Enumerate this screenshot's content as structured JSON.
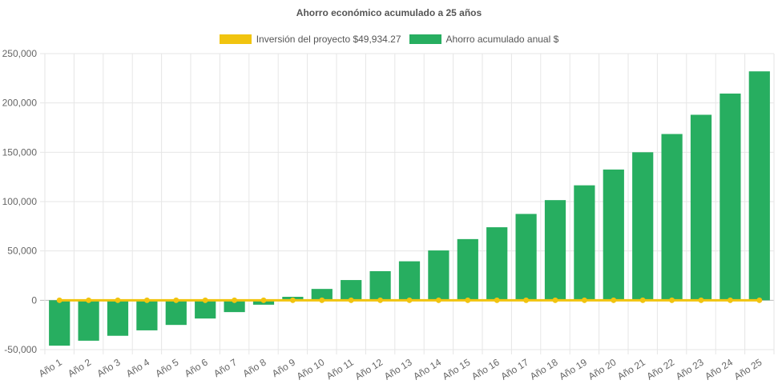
{
  "chart_data": {
    "type": "bar",
    "title": "Ahorro económico acumulado a 25 años",
    "categories": [
      "Año 1",
      "Año 2",
      "Año 3",
      "Año 4",
      "Año 5",
      "Año 6",
      "Año 7",
      "Año 8",
      "Año 9",
      "Año 10",
      "Año 11",
      "Año 12",
      "Año 13",
      "Año 14",
      "Año 15",
      "Año 16",
      "Año 17",
      "Año 18",
      "Año 19",
      "Año 20",
      "Año 21",
      "Año 22",
      "Año 23",
      "Año 24",
      "Año 25"
    ],
    "series": [
      {
        "name": "Inversión del proyecto $49,934.27",
        "type": "line",
        "color": "#f1c40f",
        "values": [
          0,
          0,
          0,
          0,
          0,
          0,
          0,
          0,
          0,
          0,
          0,
          0,
          0,
          0,
          0,
          0,
          0,
          0,
          0,
          0,
          0,
          0,
          0,
          0,
          0
        ]
      },
      {
        "name": "Ahorro acumulado anual $",
        "type": "bar",
        "color": "#27ae60",
        "values": [
          -46000,
          -41000,
          -36000,
          -30500,
          -25000,
          -18500,
          -12000,
          -4500,
          3500,
          11500,
          20500,
          29500,
          39500,
          50500,
          62000,
          74000,
          87500,
          101500,
          116500,
          132500,
          150000,
          168500,
          188000,
          209500,
          232000
        ]
      }
    ],
    "y_ticks": [
      "250,000",
      "200,000",
      "150,000",
      "100,000",
      "50,000",
      "0",
      "-50,000"
    ],
    "ylim": [
      -50000,
      250000
    ],
    "grid": true,
    "legend_position": "top"
  }
}
